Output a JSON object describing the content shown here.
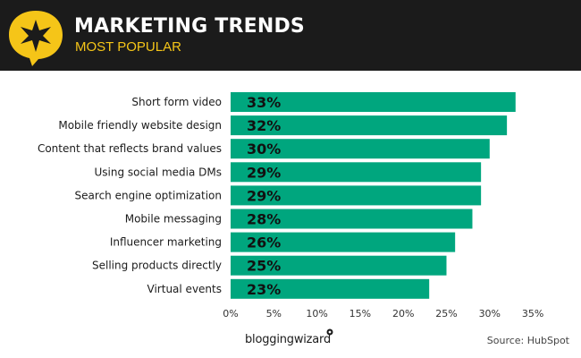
{
  "header": {
    "title": "MARKETING TRENDS",
    "subtitle": "MOST POPULAR"
  },
  "brand": {
    "name": "bloggingwizard"
  },
  "source": "Source: HubSpot",
  "colors": {
    "bar": "#00a67e",
    "header_bg": "#1b1b1b",
    "accent": "#f5c518"
  },
  "chart_data": {
    "type": "bar",
    "orientation": "horizontal",
    "categories": [
      "Short form video",
      "Mobile friendly website design",
      "Content that reflects brand values",
      "Using social media DMs",
      "Search engine optimization",
      "Mobile messaging",
      "Influencer marketing",
      "Selling products directly",
      "Virtual events"
    ],
    "values": [
      33,
      32,
      30,
      29,
      29,
      28,
      26,
      25,
      23
    ],
    "value_labels": [
      "33%",
      "32%",
      "30%",
      "29%",
      "29%",
      "28%",
      "26%",
      "25%",
      "23%"
    ],
    "xlim": [
      0,
      35
    ],
    "xticks": [
      0,
      5,
      10,
      15,
      20,
      25,
      30,
      35
    ],
    "xtick_labels": [
      "0%",
      "5%",
      "10%",
      "15%",
      "20%",
      "25%",
      "30%",
      "35%"
    ],
    "grid": false,
    "legend": "none"
  }
}
